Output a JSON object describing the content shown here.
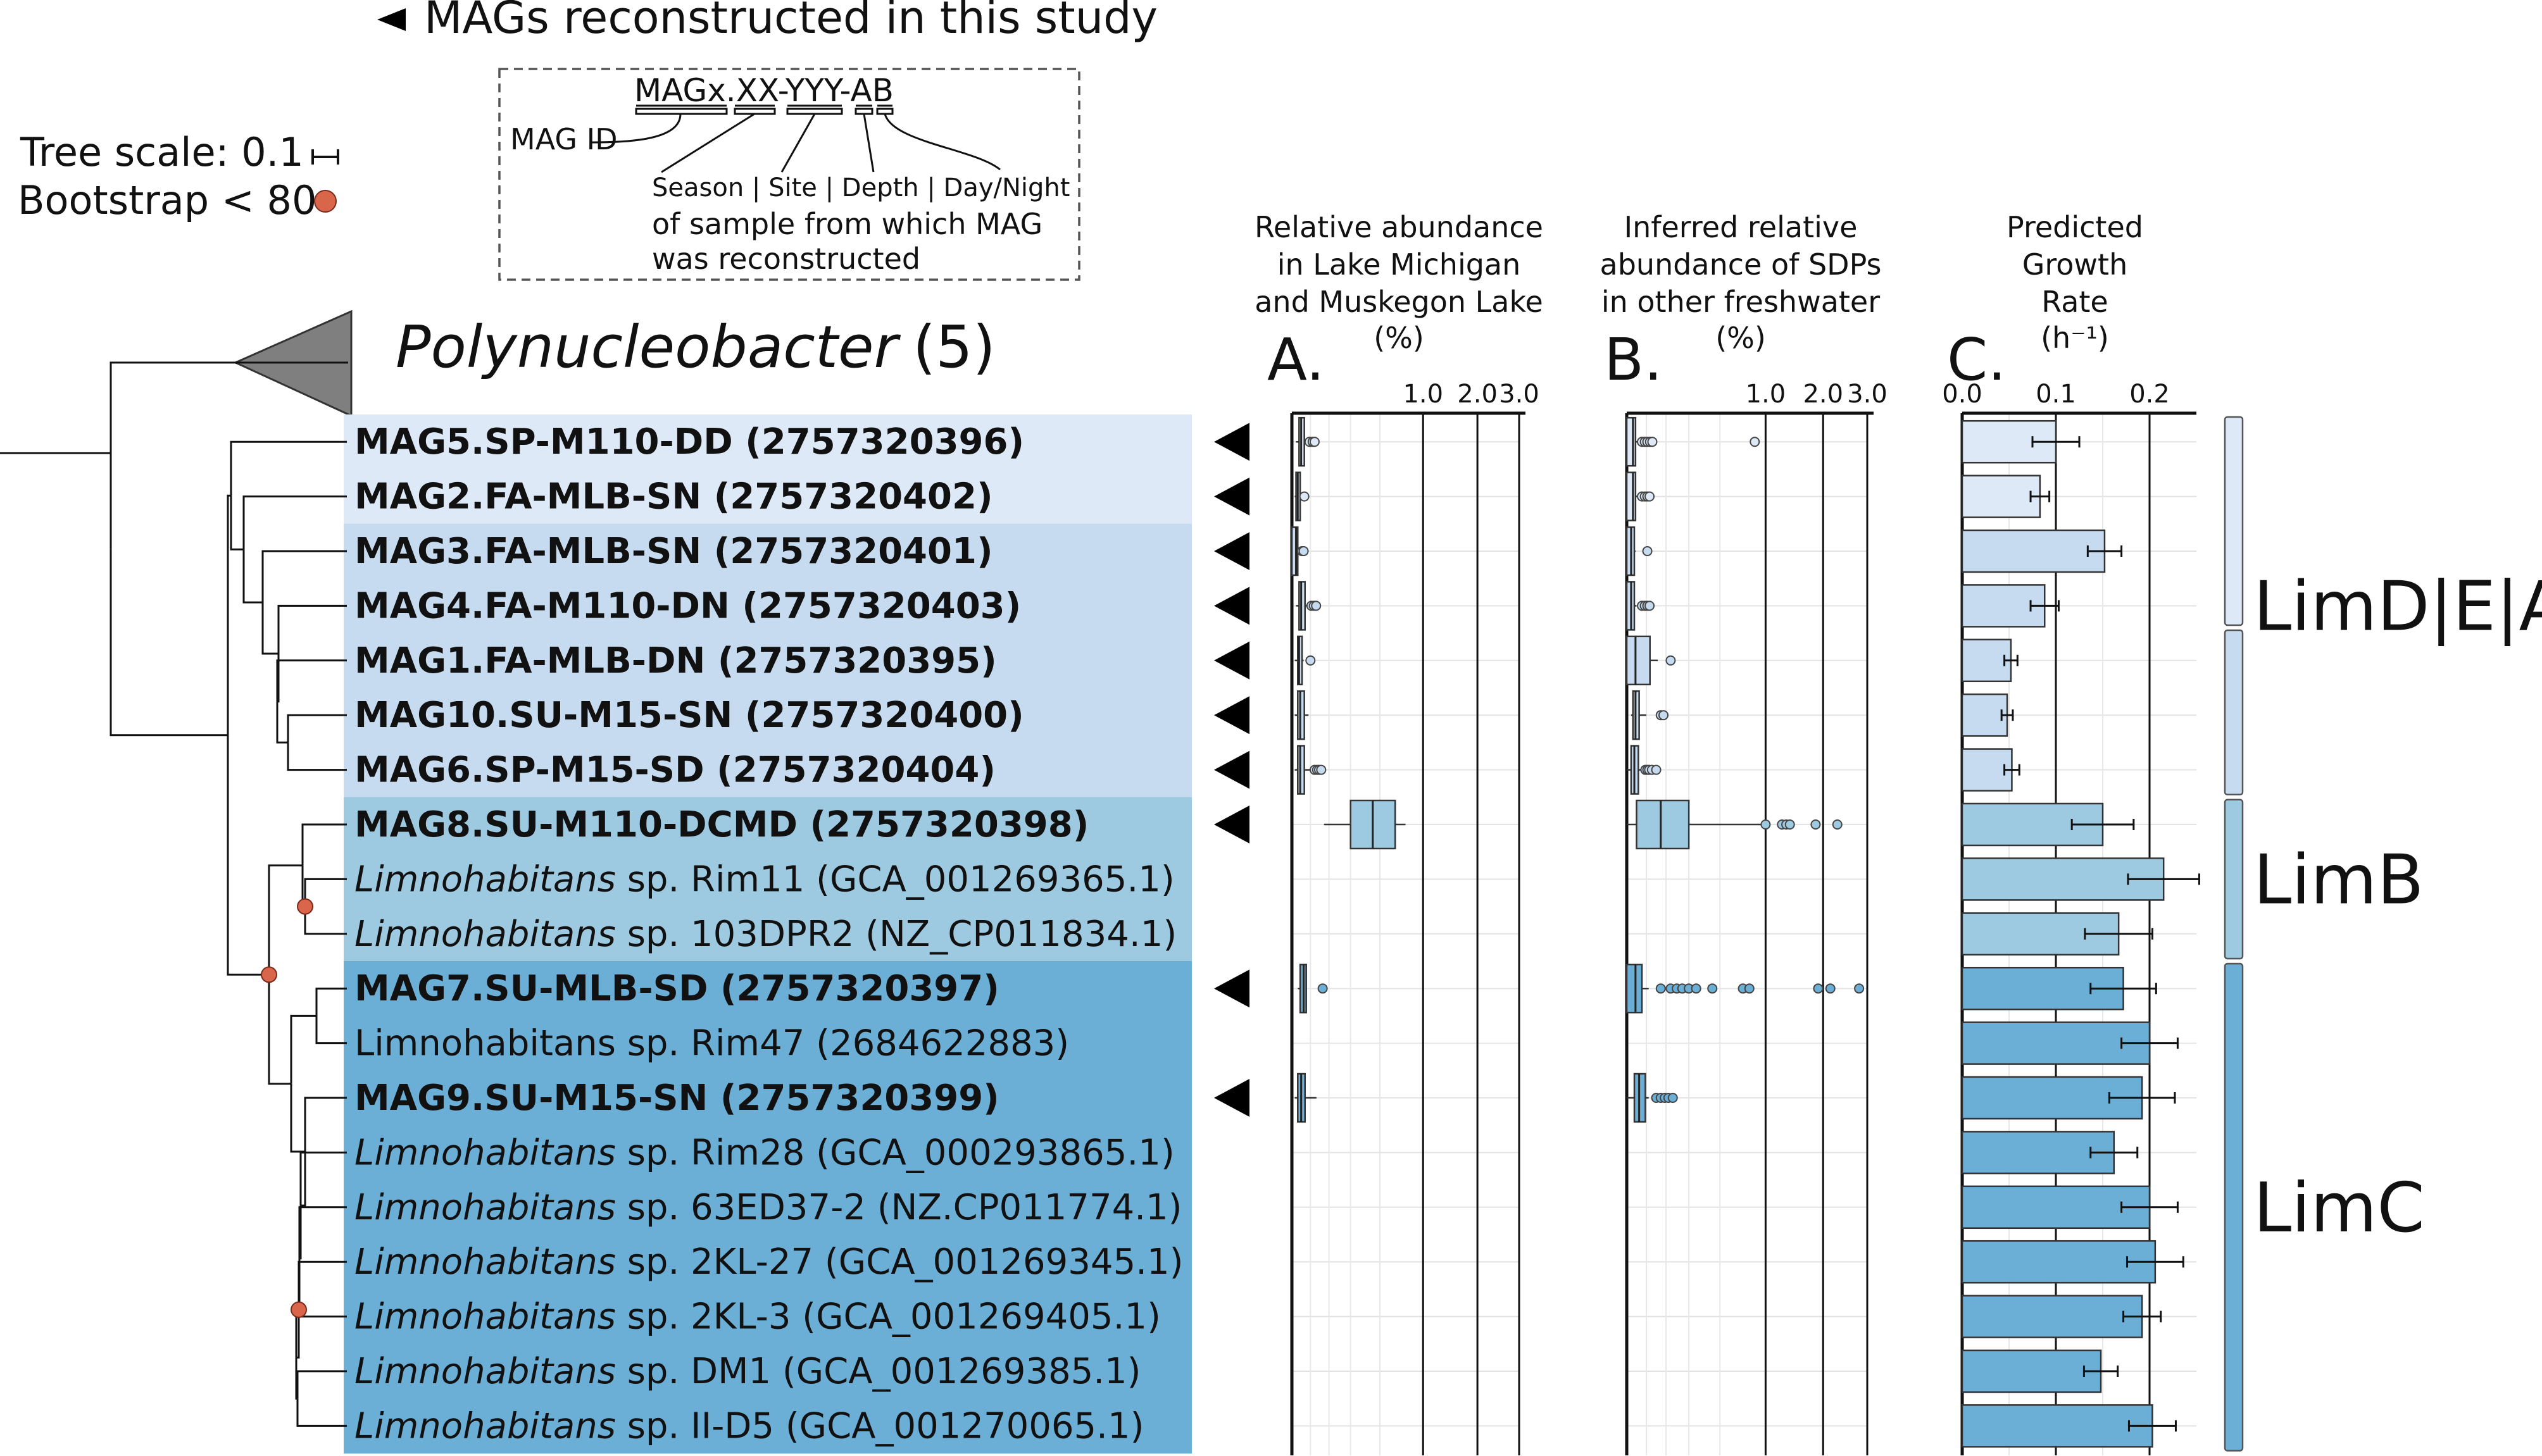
{
  "legend": {
    "mag_marker_label": "MAGs reconstructed in this study",
    "tree_scale_label": "Tree scale: 0.1",
    "bootstrap_label": "Bootstrap < 80",
    "bootstrap_color": "#d9654b"
  },
  "key": {
    "id_pattern": "MAGx.XX-YYY-AB",
    "mag_id_label": "MAG ID",
    "fields_label": "Season | Site | Depth | Day/Night",
    "desc_line1": "of sample from which MAG",
    "desc_line2": "was reconstructed"
  },
  "collapsed_clade": {
    "name": "Polynucleobacter",
    "count": "(5)"
  },
  "panel_titles": {
    "a": [
      "Relative abundance",
      "in Lake Michigan",
      "and Muskegon Lake",
      "(%)"
    ],
    "b": [
      "Inferred relative",
      "abundance of SDPs",
      "in other freshwater",
      "(%)"
    ],
    "c": [
      "Predicted",
      "Growth",
      "Rate",
      "(h⁻¹)"
    ]
  },
  "panel_letters": {
    "a": "A.",
    "b": "B.",
    "c": "C."
  },
  "colors": {
    "limdea_1": "#dde9f6",
    "limdea_2": "#c6dbef",
    "limb": "#9ecae1",
    "limc": "#6baed6",
    "box_limdea_1": "#dde9f6",
    "box_limdea_2": "#c6dbef",
    "box_limb": "#9ecae1",
    "box_limc": "#6baed6",
    "triangle": "#7f7f7f"
  },
  "clade_labels": [
    "LimD|E|A",
    "LimB",
    "LimC"
  ],
  "taxa": [
    {
      "name": "MAG5.SP-M110-DD (2757320396)",
      "genus": "",
      "rest": "",
      "bold": true,
      "mag": true,
      "group": "limdea_1"
    },
    {
      "name": "MAG2.FA-MLB-SN (2757320402)",
      "genus": "",
      "rest": "",
      "bold": true,
      "mag": true,
      "group": "limdea_1"
    },
    {
      "name": "MAG3.FA-MLB-SN (2757320401)",
      "genus": "",
      "rest": "",
      "bold": true,
      "mag": true,
      "group": "limdea_2"
    },
    {
      "name": "MAG4.FA-M110-DN (2757320403)",
      "genus": "",
      "rest": "",
      "bold": true,
      "mag": true,
      "group": "limdea_2"
    },
    {
      "name": "MAG1.FA-MLB-DN (2757320395)",
      "genus": "",
      "rest": "",
      "bold": true,
      "mag": true,
      "group": "limdea_2"
    },
    {
      "name": "MAG10.SU-M15-SN (2757320400)",
      "genus": "",
      "rest": "",
      "bold": true,
      "mag": true,
      "group": "limdea_2"
    },
    {
      "name": "MAG6.SP-M15-SD (2757320404)",
      "genus": "",
      "rest": "",
      "bold": true,
      "mag": true,
      "group": "limdea_2"
    },
    {
      "name": "MAG8.SU-M110-DCMD (2757320398)",
      "genus": "",
      "rest": "",
      "bold": true,
      "mag": true,
      "group": "limb"
    },
    {
      "name": "",
      "genus": "Limnohabitans",
      "rest": " sp. Rim11 (GCA_001269365.1)",
      "bold": false,
      "mag": false,
      "group": "limb"
    },
    {
      "name": "",
      "genus": "Limnohabitans",
      "rest": " sp. 103DPR2 (NZ_CP011834.1)",
      "bold": false,
      "mag": false,
      "group": "limb"
    },
    {
      "name": "MAG7.SU-MLB-SD (2757320397)",
      "genus": "",
      "rest": "",
      "bold": true,
      "mag": true,
      "group": "limc"
    },
    {
      "name": "Limnohabitans sp. Rim47 (2684622883)",
      "genus": "",
      "rest": "",
      "bold": false,
      "mag": false,
      "group": "limc"
    },
    {
      "name": "MAG9.SU-M15-SN (2757320399)",
      "genus": "",
      "rest": "",
      "bold": true,
      "mag": true,
      "group": "limc"
    },
    {
      "name": "",
      "genus": "Limnohabitans",
      "rest": " sp. Rim28 (GCA_000293865.1)",
      "bold": false,
      "mag": false,
      "group": "limc"
    },
    {
      "name": "",
      "genus": "Limnohabitans",
      "rest": " sp. 63ED37-2 (NZ.CP011774.1)",
      "bold": false,
      "mag": false,
      "group": "limc"
    },
    {
      "name": "",
      "genus": "Limnohabitans",
      "rest": " sp. 2KL-27 (GCA_001269345.1)",
      "bold": false,
      "mag": false,
      "group": "limc"
    },
    {
      "name": "",
      "genus": "Limnohabitans",
      "rest": " sp. 2KL-3 (GCA_001269405.1)",
      "bold": false,
      "mag": false,
      "group": "limc"
    },
    {
      "name": "",
      "genus": "Limnohabitans",
      "rest": " sp. DM1 (GCA_001269385.1)",
      "bold": false,
      "mag": false,
      "group": "limc"
    },
    {
      "name": "",
      "genus": "Limnohabitans",
      "rest": " sp. II-D5 (GCA_001270065.1)",
      "bold": false,
      "mag": false,
      "group": "limc"
    }
  ],
  "chart_data": [
    {
      "type": "box",
      "panel": "A",
      "title": "Relative abundance in Lake Michigan and Muskegon Lake (%)",
      "scale": "sqrt",
      "ticks": [
        "1.0",
        "2.0",
        "3.0"
      ],
      "tick_values": [
        1.0,
        2.0,
        3.0
      ],
      "xlim": [
        0,
        3.0
      ],
      "rows": [
        {
          "taxon": 0,
          "box": [
            0.003,
            0.005,
            0.009
          ],
          "whisker": [
            0.001,
            0.012
          ],
          "outliers": [
            0.018,
            0.025,
            0.03
          ]
        },
        {
          "taxon": 1,
          "box": [
            0.001,
            0.002,
            0.004
          ],
          "whisker": [
            0.0005,
            0.005
          ],
          "outliers": [
            0.009
          ]
        },
        {
          "taxon": 2,
          "box": [
            0.0,
            0.001,
            0.002
          ],
          "whisker": [
            0.0,
            0.003
          ],
          "outliers": [
            0.006,
            0.008
          ]
        },
        {
          "taxon": 3,
          "box": [
            0.003,
            0.005,
            0.01
          ],
          "whisker": [
            0.001,
            0.013
          ],
          "outliers": [
            0.022,
            0.028,
            0.034
          ]
        },
        {
          "taxon": 4,
          "box": [
            0.002,
            0.003,
            0.006
          ],
          "whisker": [
            0.0005,
            0.008
          ],
          "outliers": [
            0.02
          ]
        },
        {
          "taxon": 5,
          "box": [
            0.002,
            0.004,
            0.009
          ],
          "whisker": [
            0.0005,
            0.016
          ],
          "outliers": []
        },
        {
          "taxon": 6,
          "box": [
            0.002,
            0.004,
            0.009
          ],
          "whisker": [
            0.0005,
            0.02
          ],
          "outliers": [
            0.03,
            0.037,
            0.043,
            0.05
          ]
        },
        {
          "taxon": 7,
          "box": [
            0.2,
            0.38,
            0.62
          ],
          "whisker": [
            0.06,
            0.75
          ],
          "outliers": []
        },
        {
          "taxon": 10,
          "box": [
            0.004,
            0.008,
            0.012
          ],
          "whisker": [
            0.002,
            0.013
          ],
          "outliers": [
            0.055
          ]
        },
        {
          "taxon": 12,
          "box": [
            0.002,
            0.005,
            0.01
          ],
          "whisker": [
            0.0005,
            0.035
          ],
          "outliers": []
        }
      ]
    },
    {
      "type": "box",
      "panel": "B",
      "title": "Inferred relative abundance of SDPs in other freshwater (%)",
      "scale": "sqrt",
      "ticks": [
        "1.0",
        "2.0",
        "3.0"
      ],
      "tick_values": [
        1.0,
        2.0,
        3.0
      ],
      "xlim": [
        0,
        3.0
      ],
      "rows": [
        {
          "taxon": 0,
          "box": [
            0.0,
            0.002,
            0.004
          ],
          "whisker": [
            0.0,
            0.006
          ],
          "outliers": [
            0.012,
            0.017,
            0.022,
            0.028,
            0.034,
            0.85
          ]
        },
        {
          "taxon": 1,
          "box": [
            0.0,
            0.002,
            0.004
          ],
          "whisker": [
            0.0,
            0.006
          ],
          "outliers": [
            0.012,
            0.017,
            0.022,
            0.027
          ]
        },
        {
          "taxon": 2,
          "box": [
            0.0,
            0.001,
            0.003
          ],
          "whisker": [
            0.0,
            0.004
          ],
          "outliers": [
            0.022
          ]
        },
        {
          "taxon": 3,
          "box": [
            0.0,
            0.001,
            0.003
          ],
          "whisker": [
            0.0,
            0.005
          ],
          "outliers": [
            0.012,
            0.017,
            0.022,
            0.027
          ]
        },
        {
          "taxon": 4,
          "box": [
            0.0,
            0.004,
            0.028
          ],
          "whisker": [
            0.0,
            0.05
          ],
          "outliers": [
            0.1
          ]
        },
        {
          "taxon": 5,
          "box": [
            0.002,
            0.004,
            0.008
          ],
          "whisker": [
            0.001,
            0.02
          ],
          "outliers": [
            0.06,
            0.07
          ]
        },
        {
          "taxon": 6,
          "box": [
            0.001,
            0.003,
            0.007
          ],
          "whisker": [
            0.0,
            0.012
          ],
          "outliers": [
            0.018,
            0.022,
            0.026,
            0.033,
            0.045
          ]
        },
        {
          "taxon": 7,
          "box": [
            0.005,
            0.06,
            0.2
          ],
          "whisker": [
            0.0,
            0.95
          ],
          "outliers": [
            1.0,
            1.25,
            1.32,
            1.38,
            1.85,
            2.3
          ]
        },
        {
          "taxon": 10,
          "box": [
            0.0,
            0.004,
            0.012
          ],
          "whisker": [
            0.0,
            0.025
          ],
          "outliers": [
            0.06,
            0.1,
            0.13,
            0.16,
            0.2,
            0.25,
            0.38,
            0.7,
            0.78,
            1.9,
            2.15,
            2.8
          ]
        },
        {
          "taxon": 12,
          "box": [
            0.003,
            0.008,
            0.018
          ],
          "whisker": [
            0.0,
            0.025
          ],
          "outliers": [
            0.045,
            0.06,
            0.075,
            0.09,
            0.11
          ]
        }
      ]
    },
    {
      "type": "bar",
      "panel": "C",
      "title": "Predicted Growth Rate (h⁻¹)",
      "ticks": [
        "0.0",
        "0.1",
        "0.2"
      ],
      "tick_values": [
        0.0,
        0.1,
        0.2
      ],
      "xlim": [
        0.0,
        0.25
      ],
      "values": [
        0.1,
        0.083,
        0.152,
        0.088,
        0.052,
        0.048,
        0.053,
        0.15,
        0.215,
        0.167,
        0.172,
        0.2,
        0.192,
        0.162,
        0.2,
        0.206,
        0.192,
        0.148,
        0.203
      ],
      "errors": [
        0.025,
        0.01,
        0.018,
        0.015,
        0.007,
        0.006,
        0.008,
        0.033,
        0.038,
        0.036,
        0.035,
        0.03,
        0.035,
        0.025,
        0.03,
        0.03,
        0.02,
        0.018,
        0.025
      ],
      "color_groups": [
        "limdea_1",
        "limdea_1",
        "limdea_2",
        "limdea_2",
        "limdea_2",
        "limdea_2",
        "limdea_2",
        "limb",
        "limb",
        "limb",
        "limc",
        "limc",
        "limc",
        "limc",
        "limc",
        "limc",
        "limc",
        "limc",
        "limc"
      ]
    }
  ]
}
